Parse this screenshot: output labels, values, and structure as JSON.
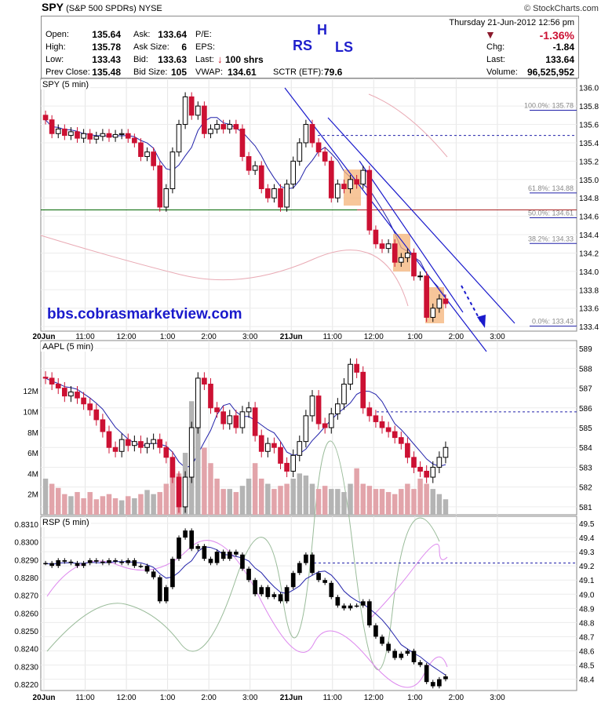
{
  "brand": {
    "symbol": "SPY",
    "name": "(S&P 500 SPDRs)",
    "exchange": "NYSE",
    "copyright": "© StockCharts.com"
  },
  "quote": {
    "date_line": "Thursday 21-Jun-2012 12:56 pm",
    "pct_change": "-1.36%",
    "open_label": "Open:",
    "open": "135.64",
    "high_label": "High:",
    "high": "135.78",
    "low_label": "Low:",
    "low": "133.43",
    "prev_close_label": "Prev Close:",
    "prev_close": "135.48",
    "ask_label": "Ask:",
    "ask": "133.64",
    "ask_size_label": "Ask Size:",
    "ask_size": "6",
    "bid_label": "Bid:",
    "bid": "133.63",
    "bid_size_label": "Bid Size:",
    "bid_size": "105",
    "pe_label": "P/E:",
    "eps_label": "EPS:",
    "last_label": "Last:",
    "last_trade": "100 shrs",
    "vwap_label": "VWAP:",
    "vwap": "134.61",
    "sctr_label": "SCTR (ETF):",
    "sctr": "79.6",
    "chg_label": "Chg:",
    "chg": "-1.84",
    "last2_label": "Last:",
    "last": "133.64",
    "volume_label": "Volume:",
    "volume": "96,525,952"
  },
  "annotations": {
    "rs": "RS",
    "h": "H",
    "ls": "LS",
    "url": "bbs.cobrasmarketview.com"
  },
  "colors": {
    "up": "#000000",
    "down": "#cc1133",
    "ma_blue": "#2222aa",
    "support_green": "#006600",
    "resistance_red": "#aa2222",
    "box_orange": "#f4b378",
    "vol_pink": "#e2a4aa",
    "vol_gray": "#b4b4b4"
  },
  "chart_data": [
    {
      "type": "candlestick",
      "panel": "SPY (5 min)",
      "title": "SPY (5 min)",
      "yticks": [
        "136.0",
        "135.8",
        "135.6",
        "135.4",
        "135.2",
        "135.0",
        "134.8",
        "134.6",
        "134.4",
        "134.2",
        "134.0",
        "133.8",
        "133.6",
        "133.4"
      ],
      "ylim": [
        133.35,
        136.1
      ],
      "xticks": [
        "20Jun",
        "11:00",
        "12:00",
        "1:00",
        "2:00",
        "3:00",
        "21Jun",
        "11:00",
        "12:00",
        "1:00",
        "2:00",
        "3:00"
      ],
      "close": [
        135.65,
        135.5,
        135.55,
        135.48,
        135.52,
        135.45,
        135.5,
        135.44,
        135.47,
        135.5,
        135.46,
        135.49,
        135.5,
        135.45,
        135.4,
        135.25,
        135.3,
        135.15,
        134.7,
        134.9,
        135.3,
        135.6,
        135.9,
        135.7,
        135.8,
        135.5,
        135.55,
        135.6,
        135.55,
        135.6,
        135.55,
        135.25,
        135.1,
        135.15,
        134.9,
        134.8,
        134.9,
        134.7,
        134.95,
        135.2,
        135.4,
        135.6,
        135.4,
        135.3,
        135.2,
        134.8,
        134.95,
        134.9,
        135.0,
        134.95,
        135.1,
        134.45,
        134.3,
        134.25,
        134.3,
        134.1,
        134.15,
        134.2,
        133.95,
        133.95,
        133.5,
        133.6,
        133.7,
        133.65
      ],
      "support_line": 134.67,
      "dashed_line": 135.48,
      "fibonacci": [
        {
          "label": "100.0%: 135.78",
          "value": 135.78
        },
        {
          "label": "61.8%: 134.88",
          "value": 134.88
        },
        {
          "label": "50.0%: 134.61",
          "value": 134.61
        },
        {
          "label": "38.2%: 134.33",
          "value": 134.33
        },
        {
          "label": "0.0%: 133.43",
          "value": 133.43
        }
      ]
    },
    {
      "type": "candlestick",
      "panel": "AAPL (5 min)",
      "title": "AAPL (5 min)",
      "yticks": [
        "589",
        "588",
        "587",
        "586",
        "585",
        "584",
        "583",
        "582",
        "581"
      ],
      "ylim": [
        580.6,
        589.4
      ],
      "volume_ticks": [
        "12M",
        "10M",
        "8M",
        "6M",
        "4M",
        "2M"
      ],
      "close": [
        587.5,
        587.2,
        587.0,
        586.6,
        586.8,
        586.5,
        586.2,
        585.9,
        585.4,
        584.8,
        584.0,
        583.8,
        584.4,
        584.1,
        584.3,
        584.0,
        584.2,
        584.4,
        584.0,
        583.5,
        582.5,
        581.0,
        582.5,
        585.0,
        587.5,
        587.2,
        586.0,
        585.8,
        585.2,
        585.6,
        585.0,
        585.8,
        586.0,
        584.6,
        583.8,
        584.2,
        584.0,
        583.2,
        582.8,
        583.6,
        584.3,
        585.6,
        586.6,
        585.2,
        585.0,
        585.7,
        586.2,
        587.2,
        588.2,
        587.8,
        586.0,
        585.6,
        585.3,
        585.0,
        584.8,
        584.5,
        584.2,
        583.5,
        583.0,
        582.8,
        582.5,
        583.0,
        583.5,
        584.0
      ],
      "volume": [
        3.5,
        3.0,
        2.6,
        2.0,
        1.8,
        2.2,
        1.6,
        2.2,
        1.5,
        1.8,
        2.0,
        1.6,
        1.4,
        1.8,
        1.6,
        2.0,
        2.4,
        2.0,
        2.2,
        3.0,
        4.5,
        4.0,
        6.0,
        11.0,
        10.5,
        6.5,
        5.0,
        3.5,
        2.5,
        2.5,
        2.2,
        2.8,
        3.5,
        5.0,
        3.5,
        3.0,
        2.5,
        2.8,
        3.0,
        3.5,
        4.0,
        3.8,
        3.0,
        2.5,
        2.8,
        2.5,
        2.5,
        2.2,
        3.0,
        4.5,
        3.0,
        2.8,
        2.5,
        2.5,
        2.2,
        2.0,
        2.5,
        3.0,
        2.5,
        3.5,
        3.0,
        2.5,
        2.0,
        1.5
      ],
      "dashed_line": 585.8
    },
    {
      "type": "line",
      "panel": "RSP (5 min)",
      "title": "RSP (5 min)",
      "yticks_left": [
        "0.8310",
        "0.8300",
        "0.8290",
        "0.8280",
        "0.8270",
        "0.8260",
        "0.8250",
        "0.8240",
        "0.8230",
        "0.8220"
      ],
      "yticks_right": [
        "49.5",
        "49.4",
        "49.3",
        "49.2",
        "49.1",
        "49.0",
        "48.9",
        "48.8",
        "48.7",
        "48.6",
        "48.5",
        "48.4"
      ],
      "ylim_right": [
        48.32,
        49.55
      ],
      "close_right": [
        49.22,
        49.2,
        49.24,
        49.23,
        49.22,
        49.2,
        49.22,
        49.24,
        49.23,
        49.22,
        49.24,
        49.23,
        49.22,
        49.24,
        49.2,
        49.2,
        49.16,
        49.12,
        48.95,
        49.05,
        49.25,
        49.4,
        49.45,
        49.32,
        49.34,
        49.25,
        49.22,
        49.3,
        49.25,
        49.3,
        49.28,
        49.18,
        49.1,
        49.0,
        49.05,
        48.98,
        49.0,
        48.95,
        49.05,
        49.15,
        49.22,
        49.28,
        49.15,
        49.1,
        49.08,
        48.98,
        48.92,
        48.9,
        48.92,
        48.92,
        48.95,
        48.78,
        48.7,
        48.65,
        48.6,
        48.55,
        48.58,
        48.6,
        48.52,
        48.5,
        48.38,
        48.35,
        48.4,
        48.42
      ],
      "dashed_line": 49.22
    }
  ]
}
